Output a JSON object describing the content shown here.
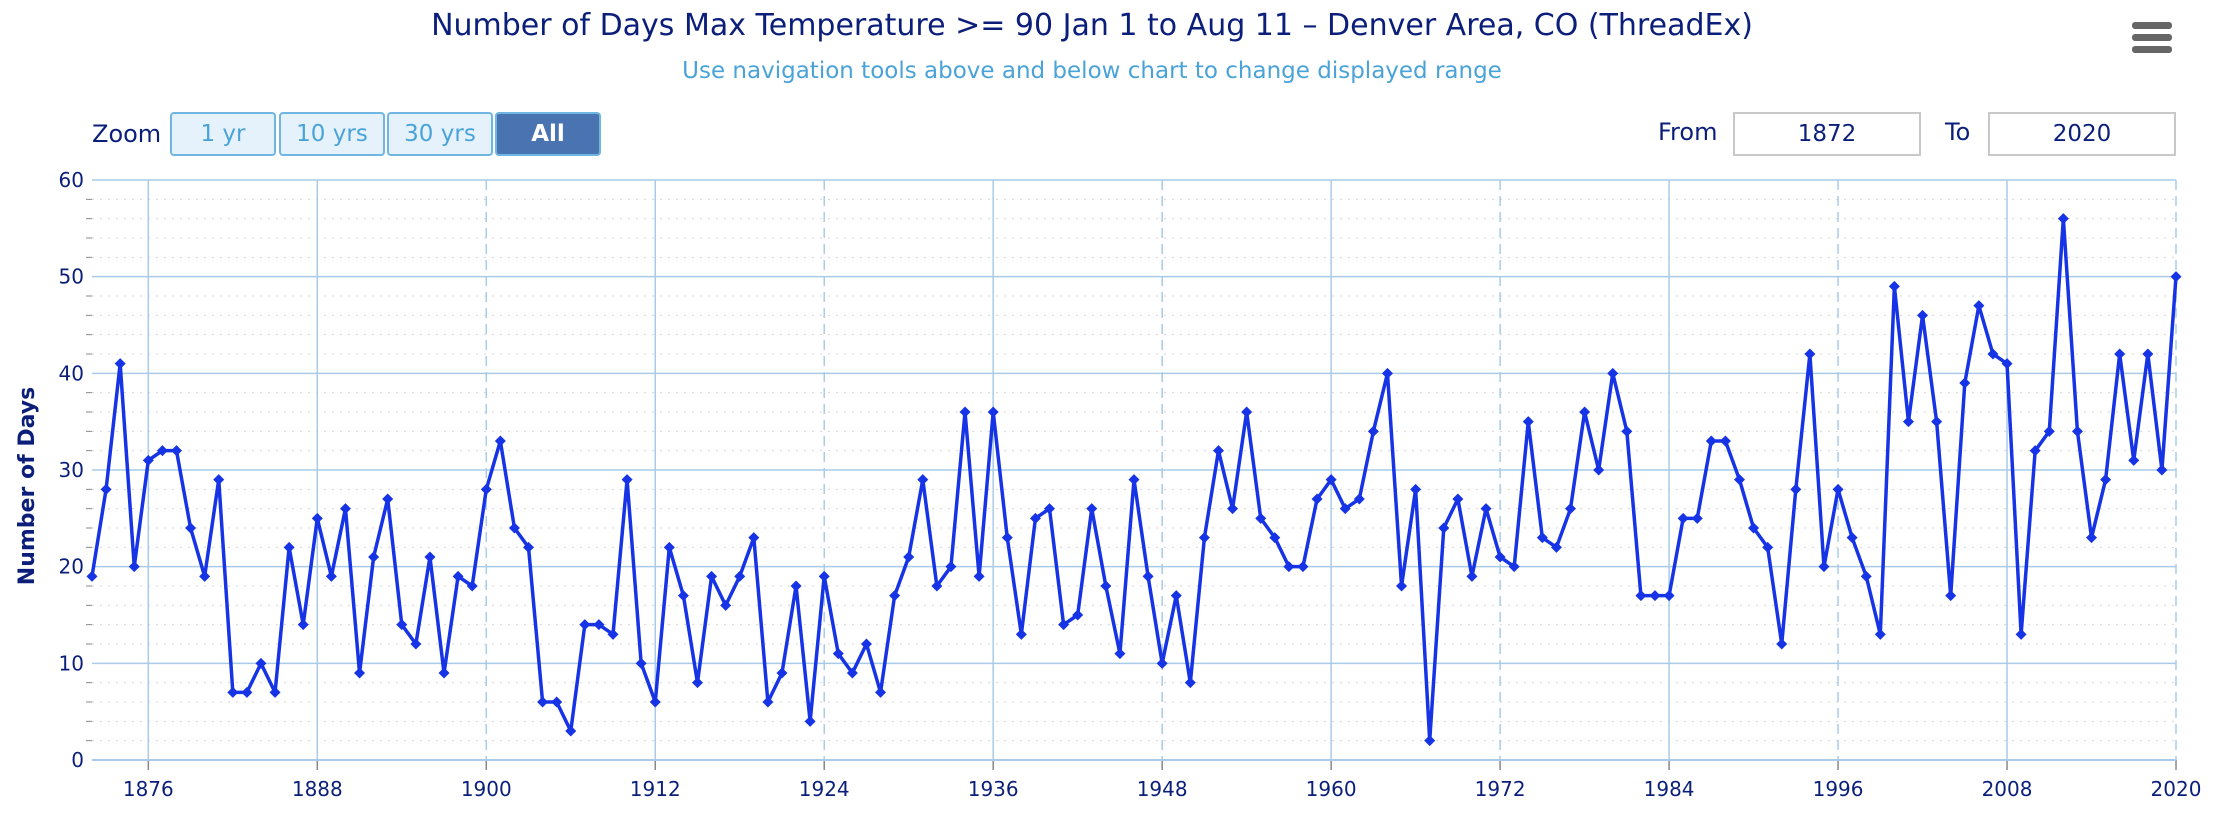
{
  "header": {
    "title": "Number of Days Max Temperature >= 90 Jan 1 to Aug 11 – Denver Area, CO (ThreadEx)",
    "subtitle": "Use navigation tools above and below chart to change displayed range"
  },
  "controls": {
    "zoom_label": "Zoom",
    "zoom_buttons": [
      "1 yr",
      "10 yrs",
      "30 yrs",
      "All"
    ],
    "active_zoom": "All",
    "from_label": "From",
    "from_value": "1872",
    "to_label": "To",
    "to_value": "2020"
  },
  "icons": {
    "menu": "hamburger-menu-icon"
  },
  "colors": {
    "series": "#1634e6",
    "grid": "#a9cbe8",
    "text": "#0b1f7a",
    "accent": "#4aa3d8"
  },
  "chart_data": {
    "type": "line",
    "title": "Number of Days Max Temperature >= 90 Jan 1 to Aug 11 – Denver Area, CO (ThreadEx)",
    "subtitle": "Use navigation tools above and below chart to change displayed range",
    "xlabel": "",
    "ylabel": "Number of Days",
    "xlim": [
      1872,
      2020
    ],
    "ylim": [
      0,
      60
    ],
    "x_ticks": [
      1876,
      1888,
      1900,
      1912,
      1924,
      1936,
      1948,
      1960,
      1972,
      1984,
      1996,
      2008,
      2020
    ],
    "y_ticks": [
      0,
      10,
      20,
      30,
      40,
      50,
      60
    ],
    "grid": true,
    "legend": "none",
    "series": [
      {
        "x_start": 1872,
        "x_end": 2020,
        "values": [
          19,
          28,
          41,
          20,
          31,
          32,
          32,
          24,
          19,
          29,
          7,
          7,
          10,
          7,
          22,
          14,
          25,
          19,
          26,
          9,
          21,
          27,
          14,
          12,
          21,
          9,
          19,
          18,
          28,
          33,
          24,
          22,
          6,
          6,
          3,
          14,
          14,
          13,
          29,
          10,
          6,
          22,
          17,
          8,
          19,
          16,
          19,
          23,
          6,
          9,
          18,
          4,
          19,
          11,
          9,
          12,
          7,
          17,
          21,
          29,
          18,
          20,
          36,
          19,
          36,
          23,
          13,
          25,
          26,
          14,
          15,
          26,
          18,
          11,
          29,
          19,
          10,
          17,
          8,
          23,
          32,
          26,
          36,
          25,
          23,
          20,
          20,
          27,
          29,
          26,
          27,
          34,
          40,
          18,
          28,
          2,
          24,
          27,
          19,
          26,
          21,
          20,
          35,
          23,
          22,
          26,
          36,
          30,
          40,
          34,
          17,
          17,
          17,
          25,
          25,
          33,
          33,
          29,
          24,
          22,
          12,
          28,
          42,
          20,
          28,
          23,
          19,
          13,
          49,
          35,
          46,
          35,
          17,
          39,
          47,
          42,
          41,
          13,
          32,
          34,
          56,
          34,
          23,
          29,
          42,
          31,
          42,
          30,
          50
        ]
      }
    ]
  }
}
